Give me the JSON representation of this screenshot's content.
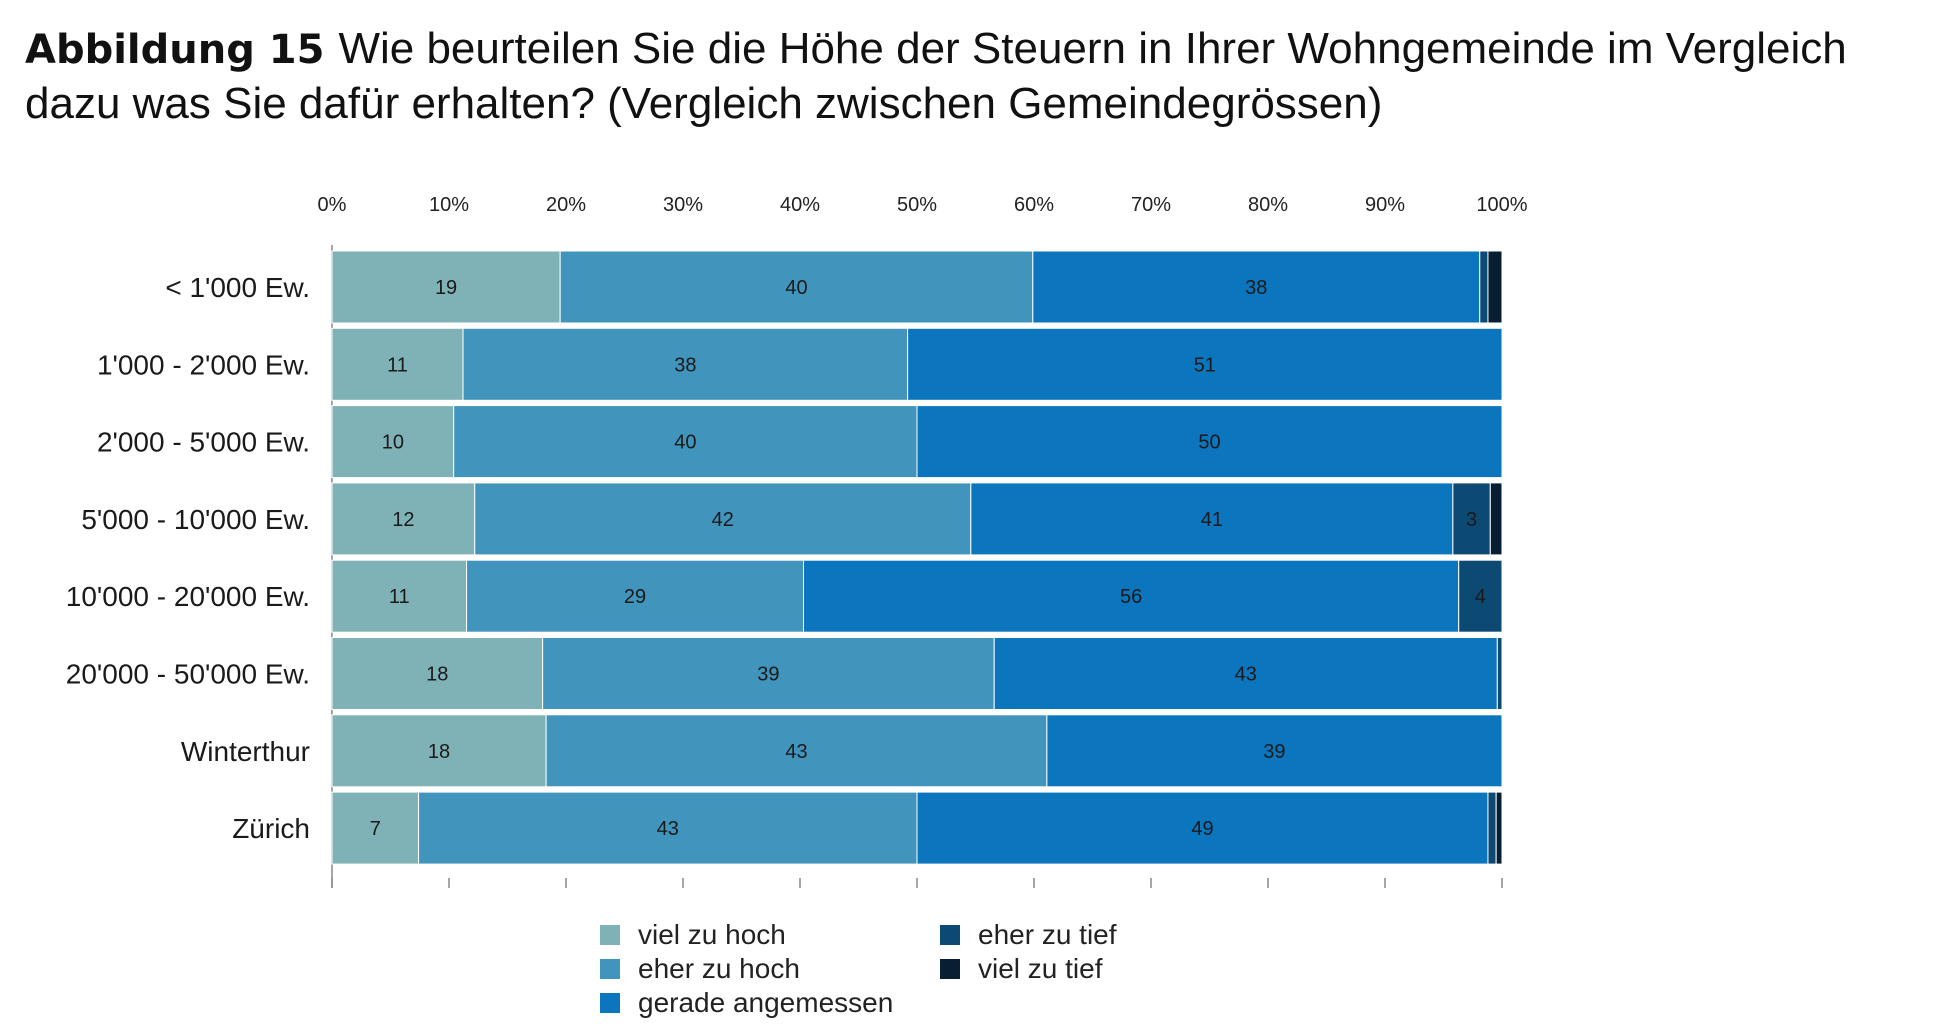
{
  "figure": {
    "label": "Abbildung 15",
    "text": "Wie beurteilen Sie die Höhe der Steuern in Ihrer Wohngemeinde im Vergleich dazu was Sie dafür erhalten? (Vergleich zwischen Gemeindegrössen)"
  },
  "chart_data": {
    "type": "bar",
    "orientation": "horizontal",
    "stacked": true,
    "normalized": true,
    "categories": [
      "< 1'000 Ew.",
      "1'000 - 2'000 Ew.",
      "2'000 - 5'000 Ew.",
      "5'000 - 10'000 Ew.",
      "10'000 - 20'000 Ew.",
      "20'000 - 50'000 Ew.",
      "Winterthur",
      "Zürich"
    ],
    "xaxis": {
      "position": "top",
      "ticks": [
        "0%",
        "10%",
        "20%",
        "30%",
        "40%",
        "50%",
        "60%",
        "70%",
        "80%",
        "90%",
        "100%"
      ],
      "xlim": [
        0,
        100
      ]
    },
    "series": [
      {
        "name": "viel zu hoch",
        "color": "#7fb2b6",
        "values": [
          19.5,
          11.2,
          10.4,
          12.2,
          11.5,
          18.0,
          18.3,
          7.4
        ]
      },
      {
        "name": "eher zu hoch",
        "color": "#4195bc",
        "values": [
          40.4,
          38.0,
          39.6,
          42.4,
          28.8,
          38.6,
          42.8,
          42.6
        ]
      },
      {
        "name": "gerade angemessen",
        "color": "#0b75be",
        "values": [
          38.2,
          50.8,
          50.0,
          41.2,
          56.0,
          43.0,
          38.9,
          48.8
        ]
      },
      {
        "name": "eher zu tief",
        "color": "#0d4a73",
        "values": [
          0.7,
          0,
          0,
          3.2,
          3.7,
          0.4,
          0,
          0.7
        ]
      },
      {
        "name": "viel zu tief",
        "color": "#071e33",
        "values": [
          1.2,
          0,
          0,
          1.0,
          0,
          0,
          0,
          0.5
        ]
      }
    ],
    "labels": [
      [
        "19",
        "40",
        "38",
        "",
        ""
      ],
      [
        "11",
        "38",
        "51",
        "",
        ""
      ],
      [
        "10",
        "40",
        "50",
        "",
        ""
      ],
      [
        "12",
        "42",
        "41",
        "3",
        ""
      ],
      [
        "11",
        "29",
        "56",
        "4",
        ""
      ],
      [
        "18",
        "39",
        "43",
        "",
        ""
      ],
      [
        "18",
        "43",
        "39",
        "",
        ""
      ],
      [
        "7",
        "43",
        "49",
        "",
        ""
      ]
    ],
    "legend": {
      "position": "bottom",
      "columns": 2
    },
    "grid": false
  }
}
